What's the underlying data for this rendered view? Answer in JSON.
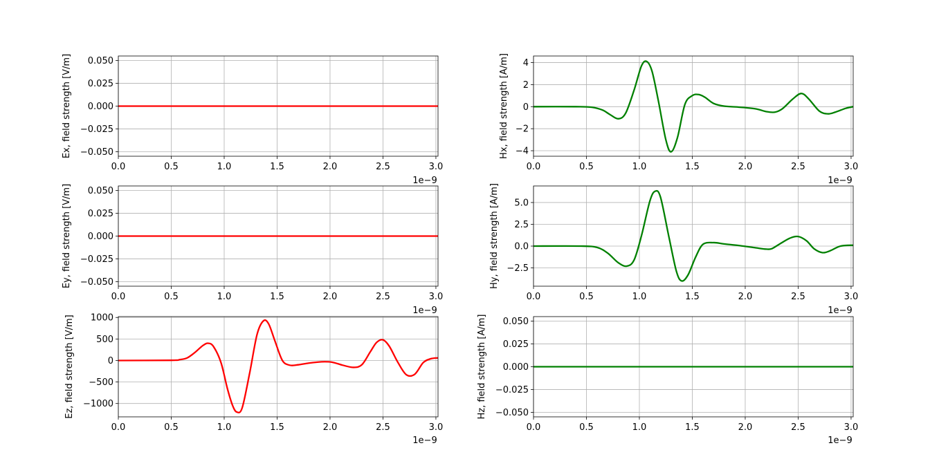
{
  "figure": {
    "x_offset_text": "1e−9"
  },
  "chart_data": [
    {
      "id": "ex",
      "type": "line",
      "ylabel": "Ex, field strength [V/m]",
      "color": "#ff0000",
      "xlim": [
        0,
        3.02e-09
      ],
      "ylim": [
        -0.055,
        0.055
      ],
      "xticks": [
        0,
        5e-10,
        1e-09,
        1.5e-09,
        2e-09,
        2.5e-09,
        3e-09
      ],
      "xtick_labels": [
        "0.0",
        "0.5",
        "1.0",
        "1.5",
        "2.0",
        "2.5",
        "3.0"
      ],
      "yticks": [
        -0.05,
        -0.025,
        0,
        0.025,
        0.05
      ],
      "ytick_labels": [
        "−0.050",
        "−0.025",
        "0.000",
        "0.025",
        "0.050"
      ],
      "grid": true,
      "series": [
        {
          "x": [
            0,
            3.02e-09
          ],
          "y": [
            0,
            0
          ]
        }
      ]
    },
    {
      "id": "hx",
      "type": "line",
      "ylabel": "Hx, field strength [A/m]",
      "color": "#008000",
      "xlim": [
        0,
        3.02e-09
      ],
      "ylim": [
        -4.5,
        4.6
      ],
      "xticks": [
        0,
        5e-10,
        1e-09,
        1.5e-09,
        2e-09,
        2.5e-09,
        3e-09
      ],
      "xtick_labels": [
        "0.0",
        "0.5",
        "1.0",
        "1.5",
        "2.0",
        "2.5",
        "3.0"
      ],
      "yticks": [
        -4,
        -2,
        0,
        2,
        4
      ],
      "ytick_labels": [
        "−4",
        "−2",
        "0",
        "2",
        "4"
      ],
      "grid": true,
      "series": [
        {
          "x": [
            0,
            4e-10,
            5.5e-10,
            6.5e-10,
            7.2e-10,
            8e-10,
            8.7e-10,
            9.5e-10,
            1.02e-09,
            1.07e-09,
            1.12e-09,
            1.18e-09,
            1.25e-09,
            1.3e-09,
            1.36e-09,
            1.43e-09,
            1.5e-09,
            1.56e-09,
            1.62e-09,
            1.7e-09,
            1.8e-09,
            1.95e-09,
            2.1e-09,
            2.2e-09,
            2.28e-09,
            2.35e-09,
            2.45e-09,
            2.53e-09,
            2.6e-09,
            2.7e-09,
            2.78e-09,
            2.85e-09,
            2.95e-09,
            3.02e-09
          ],
          "y": [
            0,
            0,
            -0.05,
            -0.3,
            -0.7,
            -1.1,
            -0.6,
            1.5,
            3.7,
            4.1,
            3.2,
            0.5,
            -3.0,
            -4.1,
            -2.8,
            0.2,
            1.0,
            1.1,
            0.85,
            0.3,
            0.05,
            -0.05,
            -0.2,
            -0.45,
            -0.5,
            -0.2,
            0.7,
            1.2,
            0.7,
            -0.4,
            -0.65,
            -0.5,
            -0.15,
            0.0
          ]
        }
      ]
    },
    {
      "id": "ey",
      "type": "line",
      "ylabel": "Ey, field strength [V/m]",
      "color": "#ff0000",
      "xlim": [
        0,
        3.02e-09
      ],
      "ylim": [
        -0.055,
        0.055
      ],
      "xticks": [
        0,
        5e-10,
        1e-09,
        1.5e-09,
        2e-09,
        2.5e-09,
        3e-09
      ],
      "xtick_labels": [
        "0.0",
        "0.5",
        "1.0",
        "1.5",
        "2.0",
        "2.5",
        "3.0"
      ],
      "yticks": [
        -0.05,
        -0.025,
        0,
        0.025,
        0.05
      ],
      "ytick_labels": [
        "−0.050",
        "−0.025",
        "0.000",
        "0.025",
        "0.050"
      ],
      "grid": true,
      "series": [
        {
          "x": [
            0,
            3.02e-09
          ],
          "y": [
            0,
            0
          ]
        }
      ]
    },
    {
      "id": "hy",
      "type": "line",
      "ylabel": "Hy, field strength [A/m]",
      "color": "#008000",
      "xlim": [
        0,
        3.02e-09
      ],
      "ylim": [
        -4.6,
        6.9
      ],
      "xticks": [
        0,
        5e-10,
        1e-09,
        1.5e-09,
        2e-09,
        2.5e-09,
        3e-09
      ],
      "xtick_labels": [
        "0.0",
        "0.5",
        "1.0",
        "1.5",
        "2.0",
        "2.5",
        "3.0"
      ],
      "yticks": [
        -2.5,
        0,
        2.5,
        5
      ],
      "ytick_labels": [
        "−2.5",
        "0.0",
        "2.5",
        "5.0"
      ],
      "grid": true,
      "series": [
        {
          "x": [
            0,
            4.5e-10,
            6e-10,
            7e-10,
            8e-10,
            8.8e-10,
            9.5e-10,
            1.02e-09,
            1.1e-09,
            1.15e-09,
            1.2e-09,
            1.28e-09,
            1.35e-09,
            1.4e-09,
            1.46e-09,
            1.53e-09,
            1.6e-09,
            1.7e-09,
            1.8e-09,
            1.95e-09,
            2.1e-09,
            2.2e-09,
            2.25e-09,
            2.32e-09,
            2.42e-09,
            2.5e-09,
            2.58e-09,
            2.65e-09,
            2.73e-09,
            2.8e-09,
            2.9e-09,
            3.02e-09
          ],
          "y": [
            0,
            0,
            -0.15,
            -0.8,
            -1.9,
            -2.3,
            -1.6,
            1.2,
            5.2,
            6.3,
            5.6,
            1.0,
            -2.9,
            -4.0,
            -3.3,
            -1.3,
            0.2,
            0.4,
            0.25,
            0.05,
            -0.2,
            -0.35,
            -0.3,
            0.2,
            0.9,
            1.1,
            0.6,
            -0.3,
            -0.75,
            -0.55,
            0.0,
            0.1
          ]
        }
      ]
    },
    {
      "id": "ez",
      "type": "line",
      "ylabel": "Ez, field strength [V/m]",
      "color": "#ff0000",
      "xlim": [
        0,
        3.02e-09
      ],
      "ylim": [
        -1310,
        1020
      ],
      "xticks": [
        0,
        5e-10,
        1e-09,
        1.5e-09,
        2e-09,
        2.5e-09,
        3e-09
      ],
      "xtick_labels": [
        "0.0",
        "0.5",
        "1.0",
        "1.5",
        "2.0",
        "2.5",
        "3.0"
      ],
      "yticks": [
        -1000,
        -500,
        0,
        500,
        1000
      ],
      "ytick_labels": [
        "−1000",
        "−500",
        "0",
        "500",
        "1000"
      ],
      "grid": true,
      "series": [
        {
          "x": [
            0,
            5e-10,
            5.8e-10,
            6.5e-10,
            7.2e-10,
            8e-10,
            8.5e-10,
            9e-10,
            9.7e-10,
            1.03e-09,
            1.08e-09,
            1.12e-09,
            1.17e-09,
            1.24e-09,
            1.31e-09,
            1.37e-09,
            1.42e-09,
            1.48e-09,
            1.55e-09,
            1.62e-09,
            1.7e-09,
            1.8e-09,
            1.92e-09,
            2.02e-09,
            2.12e-09,
            2.22e-09,
            2.3e-09,
            2.38e-09,
            2.44e-09,
            2.5e-09,
            2.56e-09,
            2.64e-09,
            2.72e-09,
            2.8e-09,
            2.88e-09,
            2.95e-09,
            3.02e-09
          ],
          "y": [
            0,
            5,
            20,
            60,
            180,
            350,
            400,
            320,
            -50,
            -650,
            -1050,
            -1200,
            -1100,
            -300,
            600,
            920,
            850,
            450,
            0,
            -110,
            -100,
            -60,
            -30,
            -40,
            -110,
            -160,
            -100,
            200,
            420,
            480,
            330,
            -40,
            -330,
            -320,
            -50,
            40,
            60
          ]
        }
      ]
    },
    {
      "id": "hz",
      "type": "line",
      "ylabel": "Hz, field strength [A/m]",
      "color": "#008000",
      "xlim": [
        0,
        3.02e-09
      ],
      "ylim": [
        -0.055,
        0.055
      ],
      "xticks": [
        0,
        5e-10,
        1e-09,
        1.5e-09,
        2e-09,
        2.5e-09,
        3e-09
      ],
      "xtick_labels": [
        "0.0",
        "0.5",
        "1.0",
        "1.5",
        "2.0",
        "2.5",
        "3.0"
      ],
      "yticks": [
        -0.05,
        -0.025,
        0,
        0.025,
        0.05
      ],
      "ytick_labels": [
        "−0.050",
        "−0.025",
        "0.000",
        "0.025",
        "0.050"
      ],
      "grid": true,
      "series": [
        {
          "x": [
            0,
            3.02e-09
          ],
          "y": [
            0,
            0
          ]
        }
      ]
    }
  ]
}
